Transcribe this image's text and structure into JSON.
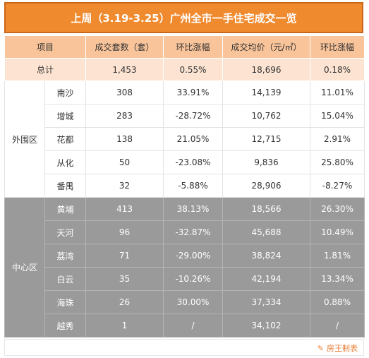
{
  "title": "上周（3.19-3.25）广州全市一手住宅成交一览",
  "headers": [
    "项目",
    "成交套数（套）",
    "环比涨幅",
    "成交均价（元/㎡）",
    "环比涨幅"
  ],
  "total": {
    "label": "总计",
    "units": "1,453",
    "units_change": "0.55%",
    "avg_price": "18,696",
    "price_change": "0.18%"
  },
  "outer": {
    "name": "外围区",
    "rows": [
      {
        "district": "南沙",
        "units": "308",
        "units_change": "33.91%",
        "avg_price": "14,139",
        "price_change": "11.01%"
      },
      {
        "district": "增城",
        "units": "283",
        "units_change": "-28.72%",
        "avg_price": "10,762",
        "price_change": "15.04%"
      },
      {
        "district": "花都",
        "units": "138",
        "units_change": "21.05%",
        "avg_price": "12,715",
        "price_change": "2.91%"
      },
      {
        "district": "从化",
        "units": "50",
        "units_change": "-23.08%",
        "avg_price": "9,836",
        "price_change": "25.80%"
      },
      {
        "district": "番禺",
        "units": "32",
        "units_change": "-5.88%",
        "avg_price": "28,906",
        "price_change": "-8.27%"
      }
    ]
  },
  "central": {
    "name": "中心区",
    "rows": [
      {
        "district": "黄埔",
        "units": "413",
        "units_change": "38.13%",
        "avg_price": "18,566",
        "price_change": "26.30%"
      },
      {
        "district": "天河",
        "units": "96",
        "units_change": "-32.87%",
        "avg_price": "45,688",
        "price_change": "10.49%"
      },
      {
        "district": "荔湾",
        "units": "71",
        "units_change": "-29.00%",
        "avg_price": "38,824",
        "price_change": "1.81%"
      },
      {
        "district": "白云",
        "units": "35",
        "units_change": "-10.26%",
        "avg_price": "42,194",
        "price_change": "13.34%"
      },
      {
        "district": "海珠",
        "units": "26",
        "units_change": "30.00%",
        "avg_price": "37,334",
        "price_change": "0.88%"
      },
      {
        "district": "越秀",
        "units": "1",
        "units_change": "/",
        "avg_price": "34,102",
        "price_change": "/"
      }
    ]
  },
  "footer": {
    "brand": "房王制表",
    "icon": "house-logo-icon"
  }
}
